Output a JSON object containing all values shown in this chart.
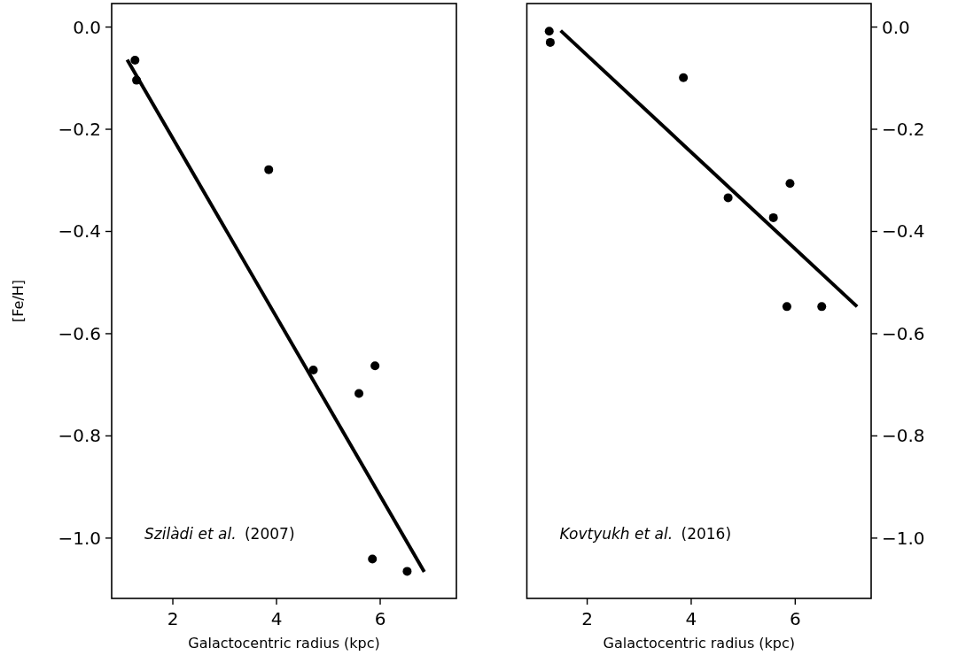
{
  "chart_data": [
    {
      "type": "scatter",
      "xlabel": "Galactocentric radius (kpc)",
      "ylabel": "[Fe/H]",
      "xlim": [
        0.82,
        7.47
      ],
      "xticks": [
        2,
        4,
        6
      ],
      "ylim": [
        -1.118,
        0.046
      ],
      "yticks": [
        {
          "value": 0.0,
          "label": "0.0"
        },
        {
          "value": -0.2,
          "label": "−0.2"
        },
        {
          "value": -0.4,
          "label": "−0.4"
        },
        {
          "value": -0.6,
          "label": "−0.6"
        },
        {
          "value": -0.8,
          "label": "−0.8"
        },
        {
          "value": -1.0,
          "label": "−1.0"
        }
      ],
      "grid": false,
      "annotations": [
        "Szilàdi et al. (2007)"
      ],
      "series": [
        {
          "marker": "circle",
          "color": "#000000",
          "x": [
            1.27,
            1.3,
            3.85,
            4.71,
            5.59,
            5.9,
            5.85,
            6.52
          ],
          "values": [
            -0.065,
            -0.104,
            -0.279,
            -0.671,
            -0.717,
            -0.663,
            -1.041,
            -1.065
          ]
        },
        {
          "type": "line",
          "color": "#000000",
          "x": [
            1.12,
            6.85
          ],
          "values": [
            -0.064,
            -1.066
          ]
        }
      ]
    },
    {
      "type": "scatter",
      "xlabel": "Galactocentric radius (kpc)",
      "xlim": [
        0.84,
        7.46
      ],
      "xticks": [
        2,
        4,
        6
      ],
      "y2lim": [
        -1.118,
        0.046
      ],
      "y2ticks": [
        {
          "value": 0.0,
          "label": "0.0"
        },
        {
          "value": -0.2,
          "label": "−0.2"
        },
        {
          "value": -0.4,
          "label": "−0.4"
        },
        {
          "value": -0.6,
          "label": "−0.6"
        },
        {
          "value": -0.8,
          "label": "−0.8"
        },
        {
          "value": -1.0,
          "label": "−1.0"
        }
      ],
      "grid": false,
      "annotations": [
        "Kovtyukh et al. (2016)"
      ],
      "series": [
        {
          "marker": "circle",
          "axis": "y2",
          "color": "#000000",
          "x": [
            1.27,
            1.29,
            3.85,
            4.71,
            5.58,
            5.9,
            5.84,
            6.51
          ],
          "values": [
            -0.008,
            -0.03,
            -0.099,
            -0.334,
            -0.373,
            -0.306,
            -0.547,
            -0.547
          ]
        },
        {
          "type": "line",
          "axis": "y2",
          "color": "#000000",
          "x": [
            1.49,
            7.19
          ],
          "values": [
            -0.007,
            -0.547
          ]
        }
      ]
    }
  ]
}
